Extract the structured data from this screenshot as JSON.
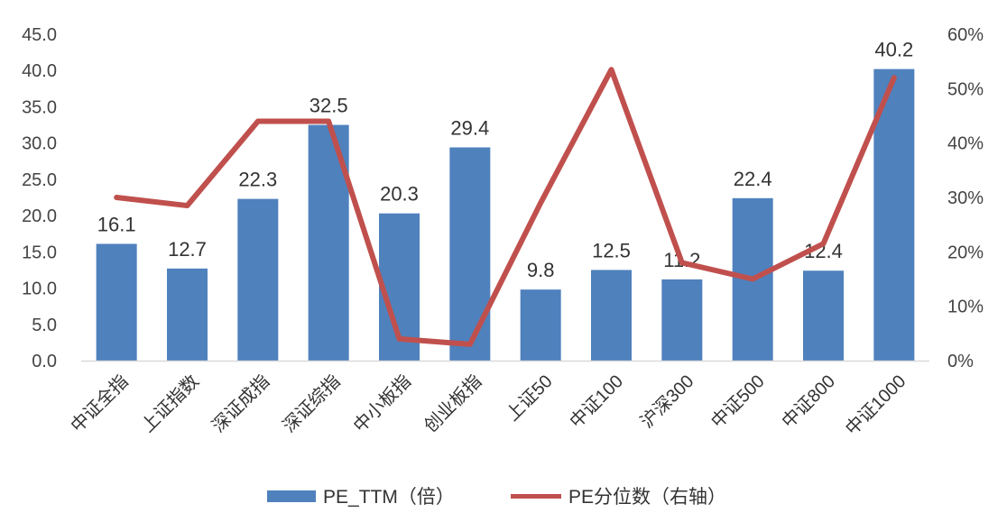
{
  "chart_data": {
    "type": "bar",
    "categories": [
      "中证全指",
      "上证指数",
      "深证成指",
      "深证综指",
      "中小板指",
      "创业板指",
      "上证50",
      "中证100",
      "沪深300",
      "中证500",
      "中证800",
      "中证1000"
    ],
    "series": [
      {
        "name": "PE_TTM（倍）",
        "type": "bar",
        "axis": "left",
        "values": [
          16.1,
          12.7,
          22.3,
          32.5,
          20.3,
          29.4,
          9.8,
          12.5,
          11.2,
          22.4,
          12.4,
          40.2
        ],
        "labels": [
          "16.1",
          "12.7",
          "22.3",
          "32.5",
          "20.3",
          "29.4",
          "9.8",
          "12.5",
          "11.2",
          "22.4",
          "12.4",
          "40.2"
        ],
        "color": "#4f81bd"
      },
      {
        "name": "PE分位数（右轴）",
        "type": "line",
        "axis": "right",
        "values": [
          0.3,
          0.285,
          0.44,
          0.44,
          0.04,
          0.03,
          0.29,
          0.535,
          0.18,
          0.15,
          0.215,
          0.52
        ],
        "color": "#c0504d"
      }
    ],
    "y_left": {
      "ylim": [
        0,
        45
      ],
      "ticks": [
        "0.0",
        "5.0",
        "10.0",
        "15.0",
        "20.0",
        "25.0",
        "30.0",
        "35.0",
        "40.0",
        "45.0"
      ]
    },
    "y_right": {
      "ylim": [
        0,
        0.6
      ],
      "ticks": [
        "0%",
        "10%",
        "20%",
        "30%",
        "40%",
        "50%",
        "60%"
      ]
    },
    "grid": false,
    "legend_position": "bottom"
  }
}
